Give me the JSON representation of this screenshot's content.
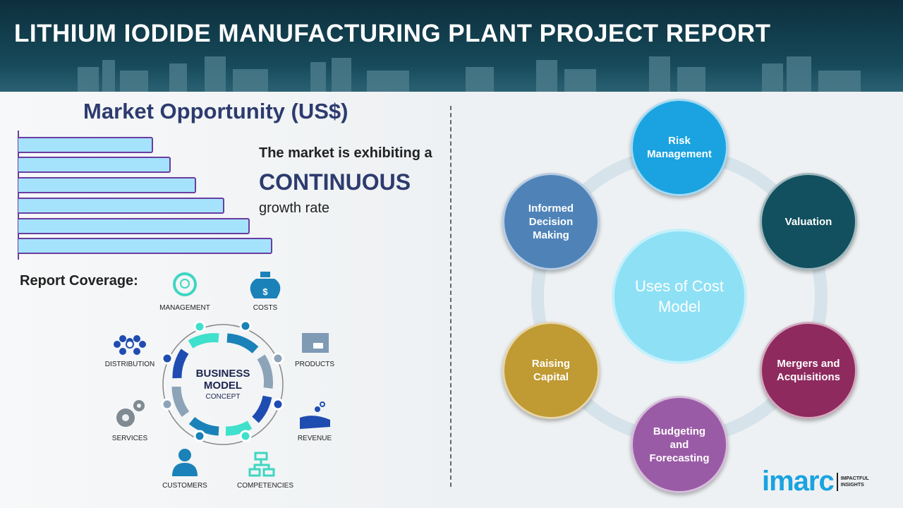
{
  "header": {
    "title": "LITHIUM IODIDE MANUFACTURING PLANT PROJECT REPORT"
  },
  "market": {
    "title": "Market Opportunity (US$)",
    "line1": "The market is exhibiting a",
    "highlight": "CONTINUOUS",
    "line2": "growth rate",
    "bar_levels": [
      0.53,
      0.6,
      0.7,
      0.81,
      0.91,
      1.0
    ]
  },
  "coverage": {
    "title": "Report Coverage:",
    "center_line1": "BUSINESS",
    "center_line2": "MODEL",
    "center_line3": "CONCEPT",
    "items": [
      "MANAGEMENT",
      "COSTS",
      "DISTRIBUTION",
      "PRODUCTS",
      "SERVICES",
      "REVENUE",
      "CUSTOMERS",
      "COMPETENCIES"
    ]
  },
  "cost_model": {
    "center": "Uses of Cost Model",
    "nodes": [
      {
        "label": "Risk Management",
        "color": "#1aa3e0"
      },
      {
        "label": "Valuation",
        "color": "#12505f"
      },
      {
        "label": "Mergers and Acquisitions",
        "color": "#8e2a5e"
      },
      {
        "label": "Budgeting and Forecasting",
        "color": "#9a5ba6"
      },
      {
        "label": "Raising Capital",
        "color": "#c09a32"
      },
      {
        "label": "Informed Decision Making",
        "color": "#4f83b8"
      }
    ]
  },
  "logo": {
    "brand": "imarc",
    "tagline1": "IMPACTFUL",
    "tagline2": "INSIGHTS"
  }
}
